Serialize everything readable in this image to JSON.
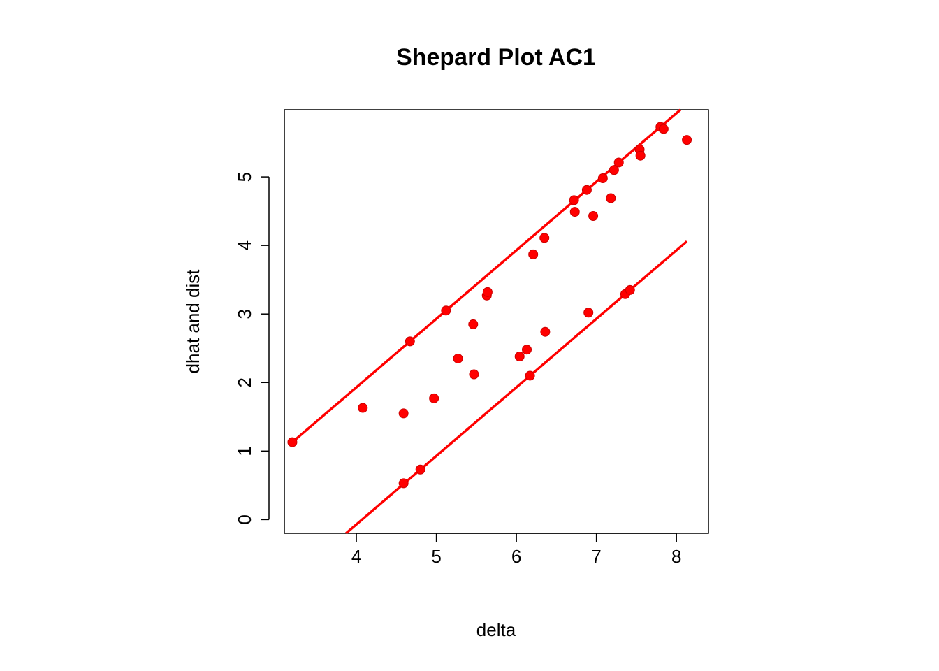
{
  "chart_data": {
    "type": "scatter",
    "title": "Shepard Plot AC1",
    "xlabel": "delta",
    "ylabel": "dhat and dist",
    "xlim": [
      3.1,
      8.4
    ],
    "ylim": [
      -0.2,
      5.98
    ],
    "xticks": [
      "4",
      "5",
      "6",
      "7",
      "8"
    ],
    "yticks": [
      "0",
      "1",
      "2",
      "3",
      "4",
      "5"
    ],
    "grid": false,
    "legend": "none",
    "point_color": "#ff0000",
    "line_color": "#ff0000",
    "points": [
      {
        "x": 3.2,
        "y": 1.13
      },
      {
        "x": 4.08,
        "y": 1.63
      },
      {
        "x": 4.59,
        "y": 1.55
      },
      {
        "x": 4.67,
        "y": 2.6
      },
      {
        "x": 4.97,
        "y": 1.77
      },
      {
        "x": 5.12,
        "y": 3.05
      },
      {
        "x": 5.27,
        "y": 2.35
      },
      {
        "x": 5.46,
        "y": 2.85
      },
      {
        "x": 5.47,
        "y": 2.12
      },
      {
        "x": 5.63,
        "y": 3.27
      },
      {
        "x": 5.64,
        "y": 3.32
      },
      {
        "x": 6.04,
        "y": 2.38
      },
      {
        "x": 6.13,
        "y": 2.48
      },
      {
        "x": 6.21,
        "y": 3.87
      },
      {
        "x": 6.35,
        "y": 4.11
      },
      {
        "x": 6.36,
        "y": 2.74
      },
      {
        "x": 6.72,
        "y": 4.66
      },
      {
        "x": 6.73,
        "y": 4.49
      },
      {
        "x": 6.88,
        "y": 4.81
      },
      {
        "x": 6.96,
        "y": 4.43
      },
      {
        "x": 6.9,
        "y": 3.02
      },
      {
        "x": 7.08,
        "y": 4.98
      },
      {
        "x": 7.18,
        "y": 4.69
      },
      {
        "x": 7.22,
        "y": 5.1
      },
      {
        "x": 7.28,
        "y": 5.21
      },
      {
        "x": 7.54,
        "y": 5.4
      },
      {
        "x": 7.55,
        "y": 5.31
      },
      {
        "x": 7.8,
        "y": 5.73
      },
      {
        "x": 7.84,
        "y": 5.7
      },
      {
        "x": 8.13,
        "y": 5.54
      },
      {
        "x": 4.59,
        "y": 0.53
      },
      {
        "x": 4.8,
        "y": 0.73
      },
      {
        "x": 6.17,
        "y": 2.1
      },
      {
        "x": 7.36,
        "y": 3.29
      },
      {
        "x": 7.42,
        "y": 3.35
      }
    ],
    "lines": [
      {
        "intercept": -2.07,
        "slope": 1.0,
        "x_start": 3.2,
        "x_end": 8.06
      },
      {
        "intercept": -4.07,
        "slope": 1.0,
        "x_start": 3.87,
        "x_end": 8.13
      }
    ]
  }
}
